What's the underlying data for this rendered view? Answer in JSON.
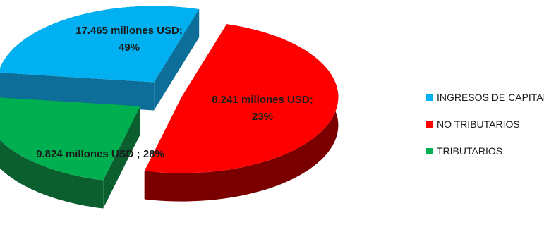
{
  "chart_data": {
    "type": "pie",
    "style": "3d-exploded",
    "legend_position": "right",
    "slices": [
      {
        "name": "INGRESOS DE CAPITAL",
        "value": 9.824,
        "percent": 28,
        "label_lines": [
          "9.824 millones USD ; 28%"
        ],
        "color": "#00B0F0",
        "side_color": "#0E6E9A"
      },
      {
        "name": "NO TRIBUTARIOS",
        "value": 17.465,
        "percent": 49,
        "label_lines": [
          "17.465 millones USD;",
          "49%"
        ],
        "color": "#FF0000",
        "side_color": "#7A0000"
      },
      {
        "name": "TRIBUTARIOS",
        "value": 8.241,
        "percent": 23,
        "label_lines": [
          "8.241 millones USD;",
          "23%"
        ],
        "color": "#00B050",
        "side_color": "#0B5E2E"
      }
    ]
  }
}
